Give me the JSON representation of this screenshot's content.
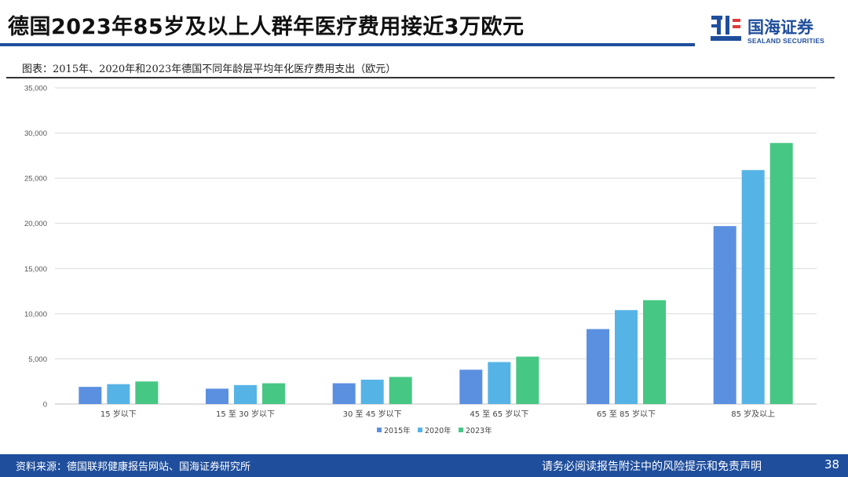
{
  "header": {
    "title": "德国2023年85岁及以上人群年医疗费用接近3万欧元"
  },
  "logo": {
    "name_cn": "国海证券",
    "name_en": "SEALAND SECURITIES"
  },
  "subtitle": "图表：2015年、2020年和2023年德国不同年龄层平均年化医疗费用支出（欧元）",
  "colors": {
    "brand": "#1f4e9c",
    "series_2015": "#5b8fe0",
    "series_2020": "#56b3e6",
    "series_2023": "#47c784",
    "grid": "#d9d9d9"
  },
  "chart_data": {
    "type": "bar",
    "title": "2015年、2020年和2023年德国不同年龄层平均年化医疗费用支出（欧元）",
    "categories": [
      "15 岁以下",
      "15 至 30 岁以下",
      "30 至 45 岁以下",
      "45 至 65 岁以下",
      "65 至 85 岁以下",
      "85 岁及以上"
    ],
    "series": [
      {
        "name": "2015年",
        "values": [
          1900,
          1700,
          2300,
          3800,
          8300,
          19700
        ]
      },
      {
        "name": "2020年",
        "values": [
          2200,
          2100,
          2700,
          4650,
          10400,
          25900
        ]
      },
      {
        "name": "2023年",
        "values": [
          2500,
          2300,
          3000,
          5250,
          11500,
          28900
        ]
      }
    ],
    "ylim": [
      0,
      35000
    ],
    "yticks": [
      0,
      5000,
      10000,
      15000,
      20000,
      25000,
      30000,
      35000
    ],
    "ytick_labels": [
      "0",
      "5,000",
      "10,000",
      "15,000",
      "20,000",
      "25,000",
      "30,000",
      "35,000"
    ],
    "xlabel": "",
    "ylabel": "",
    "grid": true,
    "legend_position": "bottom-center"
  },
  "footer": {
    "source": "资料来源：德国联邦健康报告网站、国海证券研究所",
    "disclaimer": "请务必阅读报告附注中的风险提示和免责声明",
    "page": "38"
  }
}
